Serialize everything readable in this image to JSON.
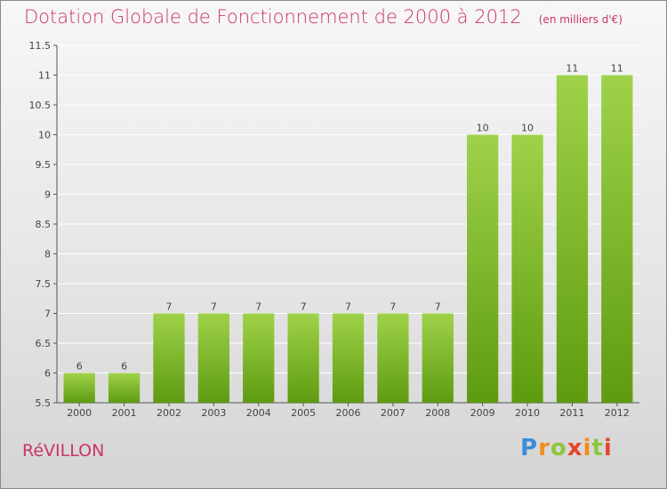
{
  "header": {
    "title": "Dotation Globale de Fonctionnement de 2000 à 2012",
    "subtitle": "(en milliers d'€)"
  },
  "footer": {
    "commune": "RéVILLON",
    "logo_text": "Proxiti"
  },
  "colors": {
    "title": "#cc3366",
    "bar_top": "#9fd24a",
    "bar_bottom": "#5e9b10",
    "grid": "#ffffff"
  },
  "chart_data": {
    "type": "bar",
    "title": "Dotation Globale de Fonctionnement de 2000 à 2012",
    "xlabel": "",
    "ylabel": "",
    "categories": [
      "2000",
      "2001",
      "2002",
      "2003",
      "2004",
      "2005",
      "2006",
      "2007",
      "2008",
      "2009",
      "2010",
      "2011",
      "2012"
    ],
    "values": [
      6,
      6,
      7,
      7,
      7,
      7,
      7,
      7,
      7,
      10,
      10,
      11,
      11
    ],
    "data_labels": [
      "6",
      "6",
      "7",
      "7",
      "7",
      "7",
      "7",
      "7",
      "7",
      "10",
      "10",
      "11",
      "11"
    ],
    "ylim": [
      5.5,
      11.5
    ],
    "yticks": [
      5.5,
      6,
      6.5,
      7,
      7.5,
      8,
      8.5,
      9,
      9.5,
      10,
      10.5,
      11,
      11.5
    ],
    "ytick_labels": [
      "5.5",
      "6",
      "6.5",
      "7",
      "7.5",
      "8",
      "8.5",
      "9",
      "9.5",
      "10",
      "10.5",
      "11",
      "11.5"
    ],
    "grid": true,
    "legend": "none"
  }
}
